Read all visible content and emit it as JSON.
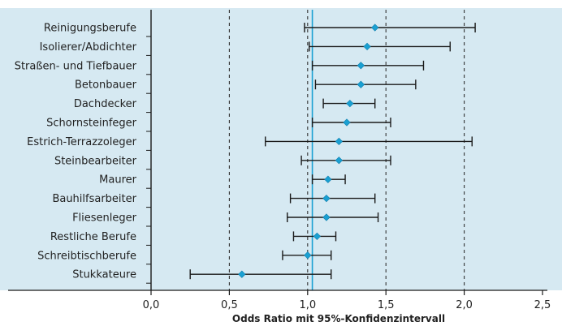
{
  "chart_data": {
    "type": "forest",
    "xlabel": "Odds Ratio mit 95%-Konfidenzintervall",
    "xlim": [
      0.0,
      2.5
    ],
    "x_ticks": [
      0.0,
      0.5,
      1.0,
      1.5,
      2.0,
      2.5
    ],
    "x_tick_labels": [
      "0,0",
      "0,5",
      "1,0",
      "1,5",
      "2,0",
      "2,5"
    ],
    "reference_line": 1.03,
    "dashed_gridlines": [
      0.5,
      1.0,
      1.5,
      2.0
    ],
    "categories": [
      "Reinigungsberufe",
      "Isolierer/Abdichter",
      "Straßen- und Tiefbauer",
      "Betonbauer",
      "Dachdecker",
      "Schornsteinfeger",
      "Estrich-Terrazzoleger",
      "Steinbearbeiter",
      "Maurer",
      "Bauhilfsarbeiter",
      "Fliesenleger",
      "Restliche Berufe",
      "Schreibtischberufe",
      "Stukkateure"
    ],
    "estimates": [
      1.43,
      1.38,
      1.34,
      1.34,
      1.27,
      1.25,
      1.2,
      1.2,
      1.13,
      1.12,
      1.12,
      1.06,
      1.0,
      0.58
    ],
    "ci_lower": [
      0.98,
      1.01,
      1.03,
      1.05,
      1.1,
      1.03,
      0.73,
      0.96,
      1.03,
      0.89,
      0.87,
      0.91,
      0.84,
      0.25
    ],
    "ci_upper": [
      2.07,
      1.91,
      1.74,
      1.69,
      1.43,
      1.53,
      2.05,
      1.53,
      1.24,
      1.43,
      1.45,
      1.18,
      1.15,
      1.15
    ],
    "colors": {
      "background": "#d6e9f2",
      "whisker": "#1a1a1a",
      "marker": "#1aa0d2",
      "reference_line": "#1aa0d2",
      "gridline": "#333333"
    }
  }
}
